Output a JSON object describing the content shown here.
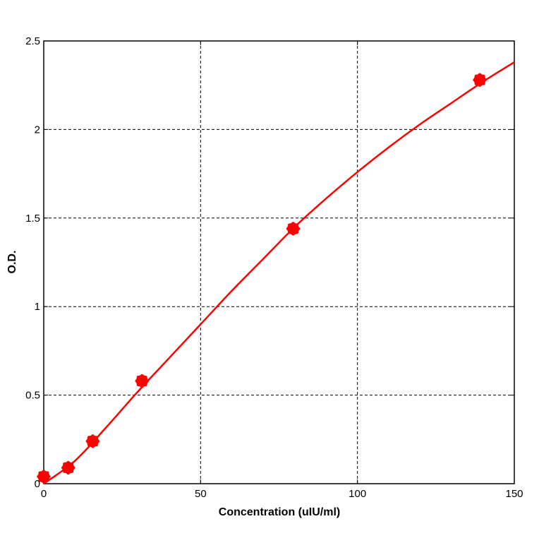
{
  "chart_data": {
    "type": "scatter",
    "title": "",
    "xlabel": "Concentration (uIU/ml)",
    "ylabel": "O.D.",
    "xlim": [
      0,
      150
    ],
    "ylim": [
      0,
      2.5
    ],
    "x_ticks": [
      0,
      50,
      100,
      150
    ],
    "y_ticks": [
      0,
      0.5,
      1,
      1.5,
      2,
      2.5
    ],
    "x_tick_labels": [
      "0",
      "50",
      "100",
      "150"
    ],
    "y_tick_labels": [
      "0",
      "0.5",
      "1",
      "1.5",
      "2",
      "2.5"
    ],
    "grid": true,
    "grid_style": "dashed",
    "colors": {
      "series": "#ff0000",
      "grid": "#000000",
      "axes": "#000000"
    },
    "series": [
      {
        "points": [
          {
            "x": 0,
            "y": 0.04
          },
          {
            "x": 7.8,
            "y": 0.09
          },
          {
            "x": 15.6,
            "y": 0.24
          },
          {
            "x": 31.3,
            "y": 0.58
          },
          {
            "x": 79.5,
            "y": 1.44
          },
          {
            "x": 139,
            "y": 2.28
          }
        ]
      }
    ],
    "fit_curve": {
      "x": [
        0,
        10,
        20,
        30,
        40,
        50,
        60,
        70,
        80,
        90,
        100,
        110,
        120,
        130,
        140,
        150
      ],
      "y": [
        0.0,
        0.13,
        0.32,
        0.52,
        0.71,
        0.9,
        1.09,
        1.27,
        1.45,
        1.61,
        1.76,
        1.9,
        2.03,
        2.15,
        2.27,
        2.38
      ]
    }
  }
}
